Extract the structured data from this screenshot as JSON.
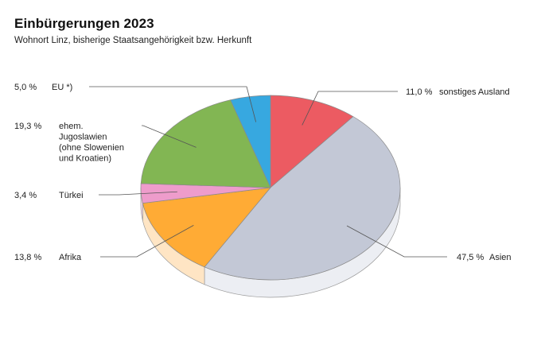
{
  "title": "Einbürgerungen 2023",
  "subtitle": "Wohnort Linz, bisherige Staatsangehörigkeit bzw. Herkunft",
  "chart_data": {
    "type": "pie",
    "style": "3d",
    "unit": "%",
    "categories": [
      "sonstiges Ausland",
      "Asien",
      "Afrika",
      "Türkei",
      "ehem. Jugoslawien (ohne Slowenien und Kroatien)",
      "EU *)"
    ],
    "values": [
      11.0,
      47.5,
      13.8,
      3.4,
      19.3,
      5.0
    ],
    "value_labels": [
      "11,0 %",
      "47,5 %",
      "13,8 %",
      "3,4 %",
      "19,3 %",
      "5,0 %"
    ],
    "label_lines": [
      [
        "sonstiges Ausland"
      ],
      [
        "Asien"
      ],
      [
        "Afrika"
      ],
      [
        "Türkei"
      ],
      [
        "ehem.",
        "Jugoslawien",
        "(ohne Slowenien",
        "und Kroatien)"
      ],
      [
        "EU *)"
      ]
    ],
    "colors": [
      "#ec5b62",
      "#c3c8d6",
      "#ffab35",
      "#ee9ccb",
      "#82b653",
      "#37a8e0"
    ],
    "side_colors": [
      "#f8cccc",
      "#eceef3",
      "#ffe5c4",
      "#f8d8ea",
      "#d8e8c8",
      "#c8e4f4"
    ]
  }
}
